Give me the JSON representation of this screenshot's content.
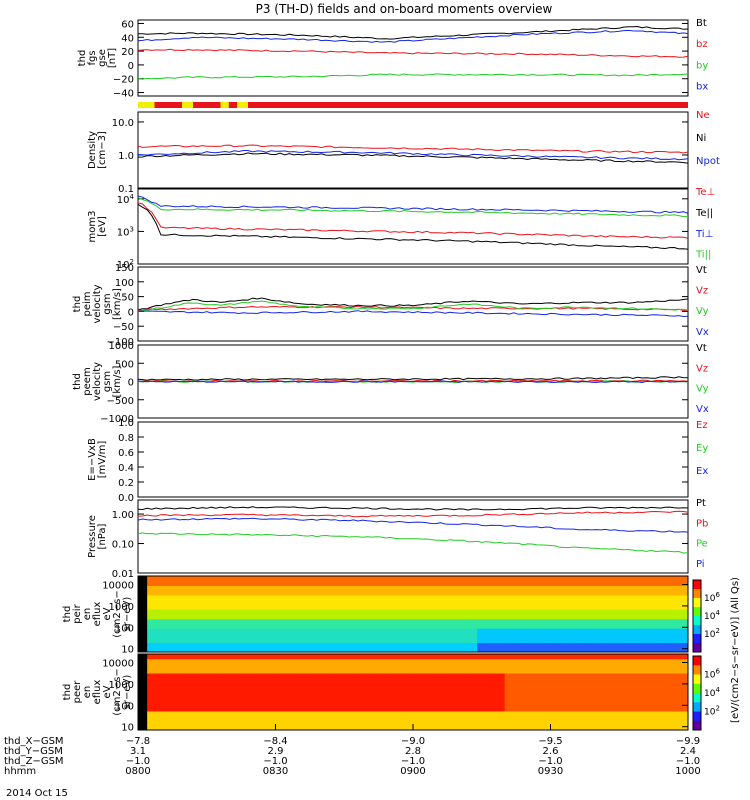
{
  "title": "P3 (TH-D) fields and on-board moments overview",
  "date_label": "2014 Oct 15",
  "colors": {
    "black": "#000000",
    "red": "#e8141c",
    "green": "#22cc22",
    "blue": "#1426e0",
    "yellow": "#f0f000"
  },
  "chart_data": [
    {
      "type": "line",
      "name": "fgs_gse",
      "ylabel": [
        "thd",
        "fgs",
        "gse",
        "[nT]"
      ],
      "ylim": [
        -45,
        65
      ],
      "yticks": [
        "60",
        "40",
        "20",
        "0",
        "−20",
        "−40"
      ],
      "ytick_values": [
        60,
        40,
        20,
        0,
        -20,
        -40
      ],
      "legend": [
        "Bt",
        "bz",
        "by",
        "bx"
      ],
      "series": [
        {
          "name": "Bt",
          "color": "black",
          "x": [
            0,
            0.1,
            0.3,
            0.45,
            0.7,
            0.9,
            1
          ],
          "y": [
            45,
            46,
            43,
            38,
            47,
            55,
            52
          ]
        },
        {
          "name": "bz",
          "color": "red",
          "x": [
            0,
            0.1,
            0.3,
            0.45,
            0.7,
            0.9,
            1
          ],
          "y": [
            22,
            22,
            20,
            17,
            16,
            13,
            12
          ]
        },
        {
          "name": "by",
          "color": "green",
          "x": [
            0,
            0.1,
            0.3,
            0.45,
            0.7,
            0.9,
            1
          ],
          "y": [
            -20,
            -18,
            -17,
            -14,
            -14,
            -15,
            -13
          ]
        },
        {
          "name": "bx",
          "color": "blue",
          "x": [
            0,
            0.1,
            0.3,
            0.45,
            0.7,
            0.9,
            1
          ],
          "y": [
            35,
            40,
            37,
            33,
            44,
            50,
            45
          ]
        }
      ]
    },
    {
      "type": "status_bar",
      "name": "mode_bar",
      "segments": [
        {
          "x0": 0,
          "x1": 0.03,
          "color": "yellow"
        },
        {
          "x0": 0.03,
          "x1": 0.08,
          "color": "red"
        },
        {
          "x0": 0.08,
          "x1": 0.1,
          "color": "yellow"
        },
        {
          "x0": 0.1,
          "x1": 0.15,
          "color": "red"
        },
        {
          "x0": 0.15,
          "x1": 0.165,
          "color": "yellow"
        },
        {
          "x0": 0.165,
          "x1": 0.18,
          "color": "red"
        },
        {
          "x0": 0.18,
          "x1": 0.2,
          "color": "yellow"
        },
        {
          "x0": 0.2,
          "x1": 1,
          "color": "red"
        }
      ]
    },
    {
      "type": "line",
      "name": "density",
      "ylabel": [
        "Density",
        "[cm−3]"
      ],
      "log": true,
      "ylim": [
        0.1,
        20
      ],
      "yticks": [
        "10.0",
        "1.0",
        "0.1"
      ],
      "ytick_values": [
        10,
        1,
        0.1
      ],
      "legend": [
        "Ne",
        "Ni",
        "Npot"
      ],
      "series": [
        {
          "name": "Ne",
          "color": "red",
          "x": [
            0,
            0.2,
            0.4,
            0.6,
            0.8,
            1
          ],
          "y": [
            1.8,
            1.9,
            1.7,
            1.5,
            1.3,
            1.2
          ]
        },
        {
          "name": "Ni",
          "color": "black",
          "x": [
            0,
            0.2,
            0.4,
            0.6,
            0.8,
            1
          ],
          "y": [
            0.9,
            1.1,
            1.0,
            0.85,
            0.7,
            0.6
          ]
        },
        {
          "name": "Npot",
          "color": "blue",
          "x": [
            0,
            0.2,
            0.4,
            0.6,
            0.8,
            1
          ],
          "y": [
            1.0,
            1.3,
            1.2,
            1.0,
            0.85,
            0.75
          ]
        }
      ]
    },
    {
      "type": "line",
      "name": "temperature",
      "ylabel": [
        "mom3",
        "[eV]"
      ],
      "log": true,
      "ylim": [
        100,
        20000
      ],
      "yticks": [
        "10^4",
        "10^3",
        "10^2"
      ],
      "ytick_values": [
        10000,
        1000,
        100
      ],
      "legend": [
        "Te⊥",
        "Te||",
        "Ti⊥",
        "Ti||"
      ],
      "series": [
        {
          "name": "Te⊥",
          "color": "red",
          "x": [
            0,
            0.04,
            0.3,
            0.6,
            0.85,
            1
          ],
          "y": [
            8000,
            1300,
            1100,
            900,
            700,
            650
          ]
        },
        {
          "name": "Te||",
          "color": "black",
          "x": [
            0,
            0.04,
            0.3,
            0.6,
            0.85,
            1
          ],
          "y": [
            7000,
            800,
            650,
            500,
            350,
            300
          ]
        },
        {
          "name": "Ti⊥",
          "color": "blue",
          "x": [
            0,
            0.04,
            0.3,
            0.6,
            0.85,
            1
          ],
          "y": [
            12000,
            6000,
            5500,
            4800,
            4200,
            3800
          ]
        },
        {
          "name": "Ti||",
          "color": "green",
          "x": [
            0,
            0.04,
            0.3,
            0.6,
            0.85,
            1
          ],
          "y": [
            11000,
            4800,
            4500,
            3900,
            3300,
            3000
          ]
        }
      ]
    },
    {
      "type": "line",
      "name": "peim_velocity",
      "ylabel": [
        "thd",
        "peim",
        "velocity",
        "gsm",
        "[km/s]"
      ],
      "ylim": [
        -100,
        150
      ],
      "yticks": [
        "150",
        "100",
        "50",
        "0",
        "−50",
        "−100"
      ],
      "ytick_values": [
        150,
        100,
        50,
        0,
        -50,
        -100
      ],
      "legend": [
        "Vt",
        "Vz",
        "Vy",
        "Vx"
      ],
      "series": [
        {
          "name": "Vt",
          "color": "black",
          "x": [
            0,
            0.05,
            0.1,
            0.15,
            0.22,
            0.3,
            0.4,
            0.5,
            0.6,
            0.7,
            0.8,
            0.9,
            1
          ],
          "y": [
            5,
            25,
            40,
            30,
            45,
            25,
            20,
            20,
            35,
            25,
            30,
            30,
            40
          ]
        },
        {
          "name": "Vz",
          "color": "red",
          "x": [
            0,
            0.2,
            0.4,
            0.6,
            0.8,
            1
          ],
          "y": [
            5,
            15,
            15,
            10,
            10,
            5
          ]
        },
        {
          "name": "Vy",
          "color": "green",
          "x": [
            0,
            0.05,
            0.1,
            0.15,
            0.22,
            0.3,
            0.4,
            0.5,
            0.6,
            0.7,
            0.8,
            0.9,
            1
          ],
          "y": [
            0,
            15,
            30,
            20,
            35,
            15,
            10,
            10,
            25,
            10,
            15,
            10,
            5
          ]
        },
        {
          "name": "Vx",
          "color": "blue",
          "x": [
            0,
            0.2,
            0.4,
            0.6,
            0.8,
            1
          ],
          "y": [
            0,
            -5,
            0,
            -5,
            -10,
            -15
          ]
        }
      ]
    },
    {
      "type": "line",
      "name": "peem_velocity",
      "ylabel": [
        "thd",
        "peem",
        "velocity",
        "gsm",
        "[km/s]"
      ],
      "ylim": [
        -1000,
        1000
      ],
      "yticks": [
        "1000",
        "500",
        "0",
        "−500",
        "−1000"
      ],
      "ytick_values": [
        1000,
        500,
        0,
        -500,
        -1000
      ],
      "legend": [
        "Vt",
        "Vz",
        "Vy",
        "Vx"
      ],
      "series": [
        {
          "name": "Vt",
          "color": "black",
          "x": [
            0,
            0.2,
            0.4,
            0.6,
            0.8,
            1
          ],
          "y": [
            50,
            60,
            60,
            70,
            80,
            120
          ]
        },
        {
          "name": "Vz",
          "color": "red",
          "x": [
            0,
            0.5,
            1
          ],
          "y": [
            10,
            15,
            20
          ]
        },
        {
          "name": "Vy",
          "color": "green",
          "x": [
            0,
            0.5,
            1
          ],
          "y": [
            0,
            -10,
            0
          ]
        },
        {
          "name": "Vx",
          "color": "blue",
          "x": [
            0,
            0.5,
            1
          ],
          "y": [
            -5,
            -5,
            -10
          ]
        }
      ]
    },
    {
      "type": "line",
      "name": "efield",
      "ylabel": [
        "E=−VxB",
        "[mV/m]"
      ],
      "ylim": [
        0,
        1
      ],
      "yticks": [
        "1.0",
        "0.8",
        "0.6",
        "0.4",
        "0.2",
        "0.0"
      ],
      "ytick_values": [
        1,
        0.8,
        0.6,
        0.4,
        0.2,
        0
      ],
      "legend": [
        "Ez",
        "Ey",
        "Ex"
      ],
      "series": []
    },
    {
      "type": "line",
      "name": "pressure",
      "ylabel": [
        "Pressure",
        "[nPa]"
      ],
      "log": true,
      "ylim": [
        0.01,
        3
      ],
      "yticks": [
        "1.00",
        "0.10",
        "0.01"
      ],
      "ytick_values": [
        1,
        0.1,
        0.01
      ],
      "legend": [
        "Pt",
        "Pb",
        "Pe",
        "Pi"
      ],
      "series": [
        {
          "name": "Pt",
          "color": "black",
          "x": [
            0,
            0.2,
            0.4,
            0.6,
            0.8,
            1
          ],
          "y": [
            1.5,
            1.7,
            1.6,
            1.4,
            1.6,
            1.7
          ]
        },
        {
          "name": "Pb",
          "color": "red",
          "x": [
            0,
            0.2,
            0.4,
            0.6,
            0.8,
            1
          ],
          "y": [
            0.9,
            0.95,
            0.85,
            0.9,
            1.1,
            1.2
          ]
        },
        {
          "name": "Pe",
          "color": "green",
          "x": [
            0,
            0.2,
            0.4,
            0.6,
            0.8,
            1
          ],
          "y": [
            0.22,
            0.2,
            0.17,
            0.12,
            0.07,
            0.05
          ]
        },
        {
          "name": "Pi",
          "color": "blue",
          "x": [
            0,
            0.2,
            0.4,
            0.6,
            0.8,
            1
          ],
          "y": [
            0.65,
            0.7,
            0.6,
            0.45,
            0.3,
            0.25
          ]
        }
      ]
    },
    {
      "type": "heatmap",
      "name": "peir_spectrogram",
      "ylabel": [
        "thd",
        "peir",
        "en",
        "eflux",
        "eV",
        "(cm2−s−",
        "sr−eV)"
      ],
      "log": true,
      "ylim": [
        7,
        25000
      ],
      "yticks": [
        "10000",
        "1000",
        "100",
        "10"
      ],
      "ytick_values": [
        10000,
        1000,
        100,
        10
      ]
    },
    {
      "type": "heatmap",
      "name": "peer_spectrogram",
      "ylabel": [
        "thd",
        "peer",
        "en",
        "eflux",
        "eV",
        "(cm2−s−",
        "sr−eV)"
      ],
      "log": true,
      "ylim": [
        7,
        25000
      ],
      "yticks": [
        "10000",
        "1000",
        "100",
        "10"
      ],
      "ytick_values": [
        10000,
        1000,
        100,
        10
      ]
    }
  ],
  "colorbar": {
    "label": "[eV/(cm2−s−sr−eV)] (All Qs)",
    "ticks": [
      "10^6",
      "10^4",
      "10^2",
      "10^6",
      "10^4",
      "10^2"
    ]
  },
  "x_axis": {
    "row_labels": [
      "thd_X−GSM",
      "thd_Y−GSM",
      "thd_Z−GSM",
      "hhmm"
    ],
    "ticks": [
      {
        "x": 0,
        "values": [
          "−7.8",
          "3.1",
          "−1.0",
          "0800"
        ]
      },
      {
        "x": 0.25,
        "values": [
          "−8.4",
          "2.9",
          "−1.0",
          "0830"
        ]
      },
      {
        "x": 0.5,
        "values": [
          "−9.0",
          "2.8",
          "−1.0",
          "0900"
        ]
      },
      {
        "x": 0.75,
        "values": [
          "−9.5",
          "2.6",
          "−1.0",
          "0930"
        ]
      },
      {
        "x": 1,
        "values": [
          "−9.9",
          "2.4",
          "−1.0",
          "1000"
        ]
      }
    ]
  }
}
